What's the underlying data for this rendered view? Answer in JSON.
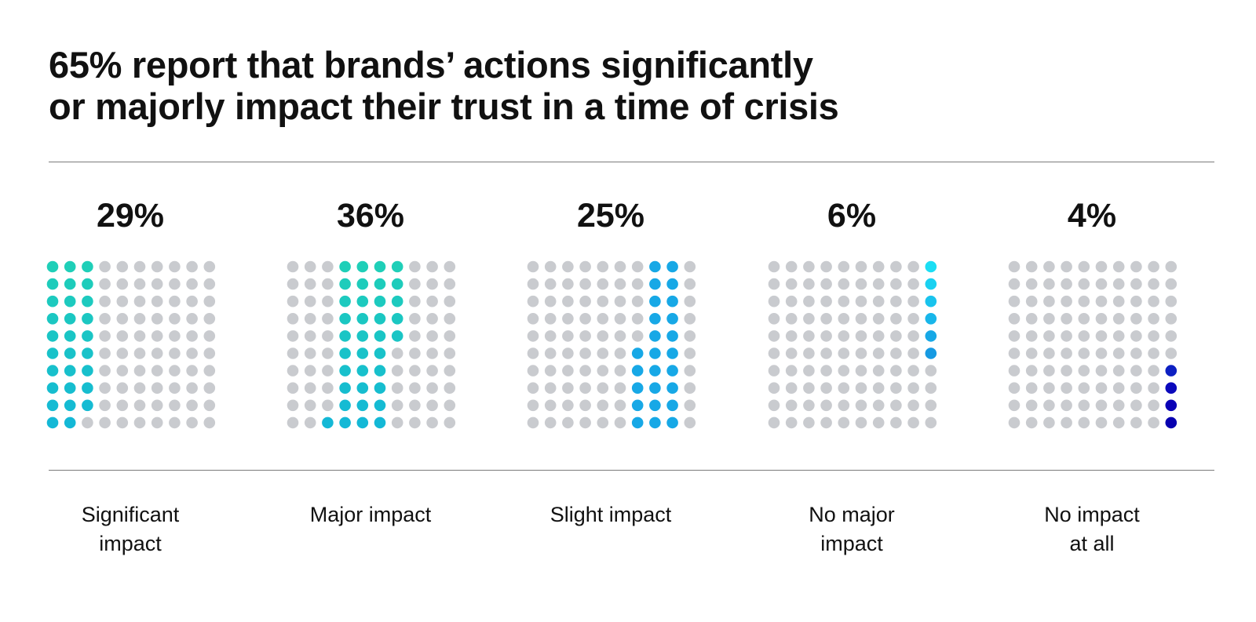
{
  "title": {
    "line1": "65% report that brands’ actions significantly",
    "line2": "or majorly impact their trust in a time of crisis"
  },
  "colors": {
    "inactive": "#c9cbcf",
    "teal": "#1fcfb8",
    "teal_blue": "#14b8d6",
    "sky": "#17a8e6",
    "blue": "#1677df",
    "dark_blue": "#1264d4"
  },
  "chart_data": {
    "type": "waffle",
    "title": "65% report that brands’ actions significantly or majorly impact their trust in a time of crisis",
    "grid": {
      "rows": 10,
      "cols": 10
    },
    "categories": [
      "Significant impact",
      "Major impact",
      "Slight impact",
      "No major impact",
      "No impact at all"
    ],
    "values": [
      29,
      36,
      25,
      6,
      4
    ],
    "unit": "%"
  },
  "columns": [
    {
      "percent_label": "29%",
      "label_lines": [
        "Significant",
        "impact"
      ],
      "value": 29,
      "start": 0
    },
    {
      "percent_label": "36%",
      "label_lines": [
        "Major impact"
      ],
      "value": 36,
      "start": 29
    },
    {
      "percent_label": "25%",
      "label_lines": [
        "Slight impact"
      ],
      "value": 25,
      "start": 65
    },
    {
      "percent_label": "6%",
      "label_lines": [
        "No major",
        "impact"
      ],
      "value": 6,
      "start": 90
    },
    {
      "percent_label": "4%",
      "label_lines": [
        "No impact",
        "at all"
      ],
      "value": 4,
      "start": 96
    }
  ]
}
